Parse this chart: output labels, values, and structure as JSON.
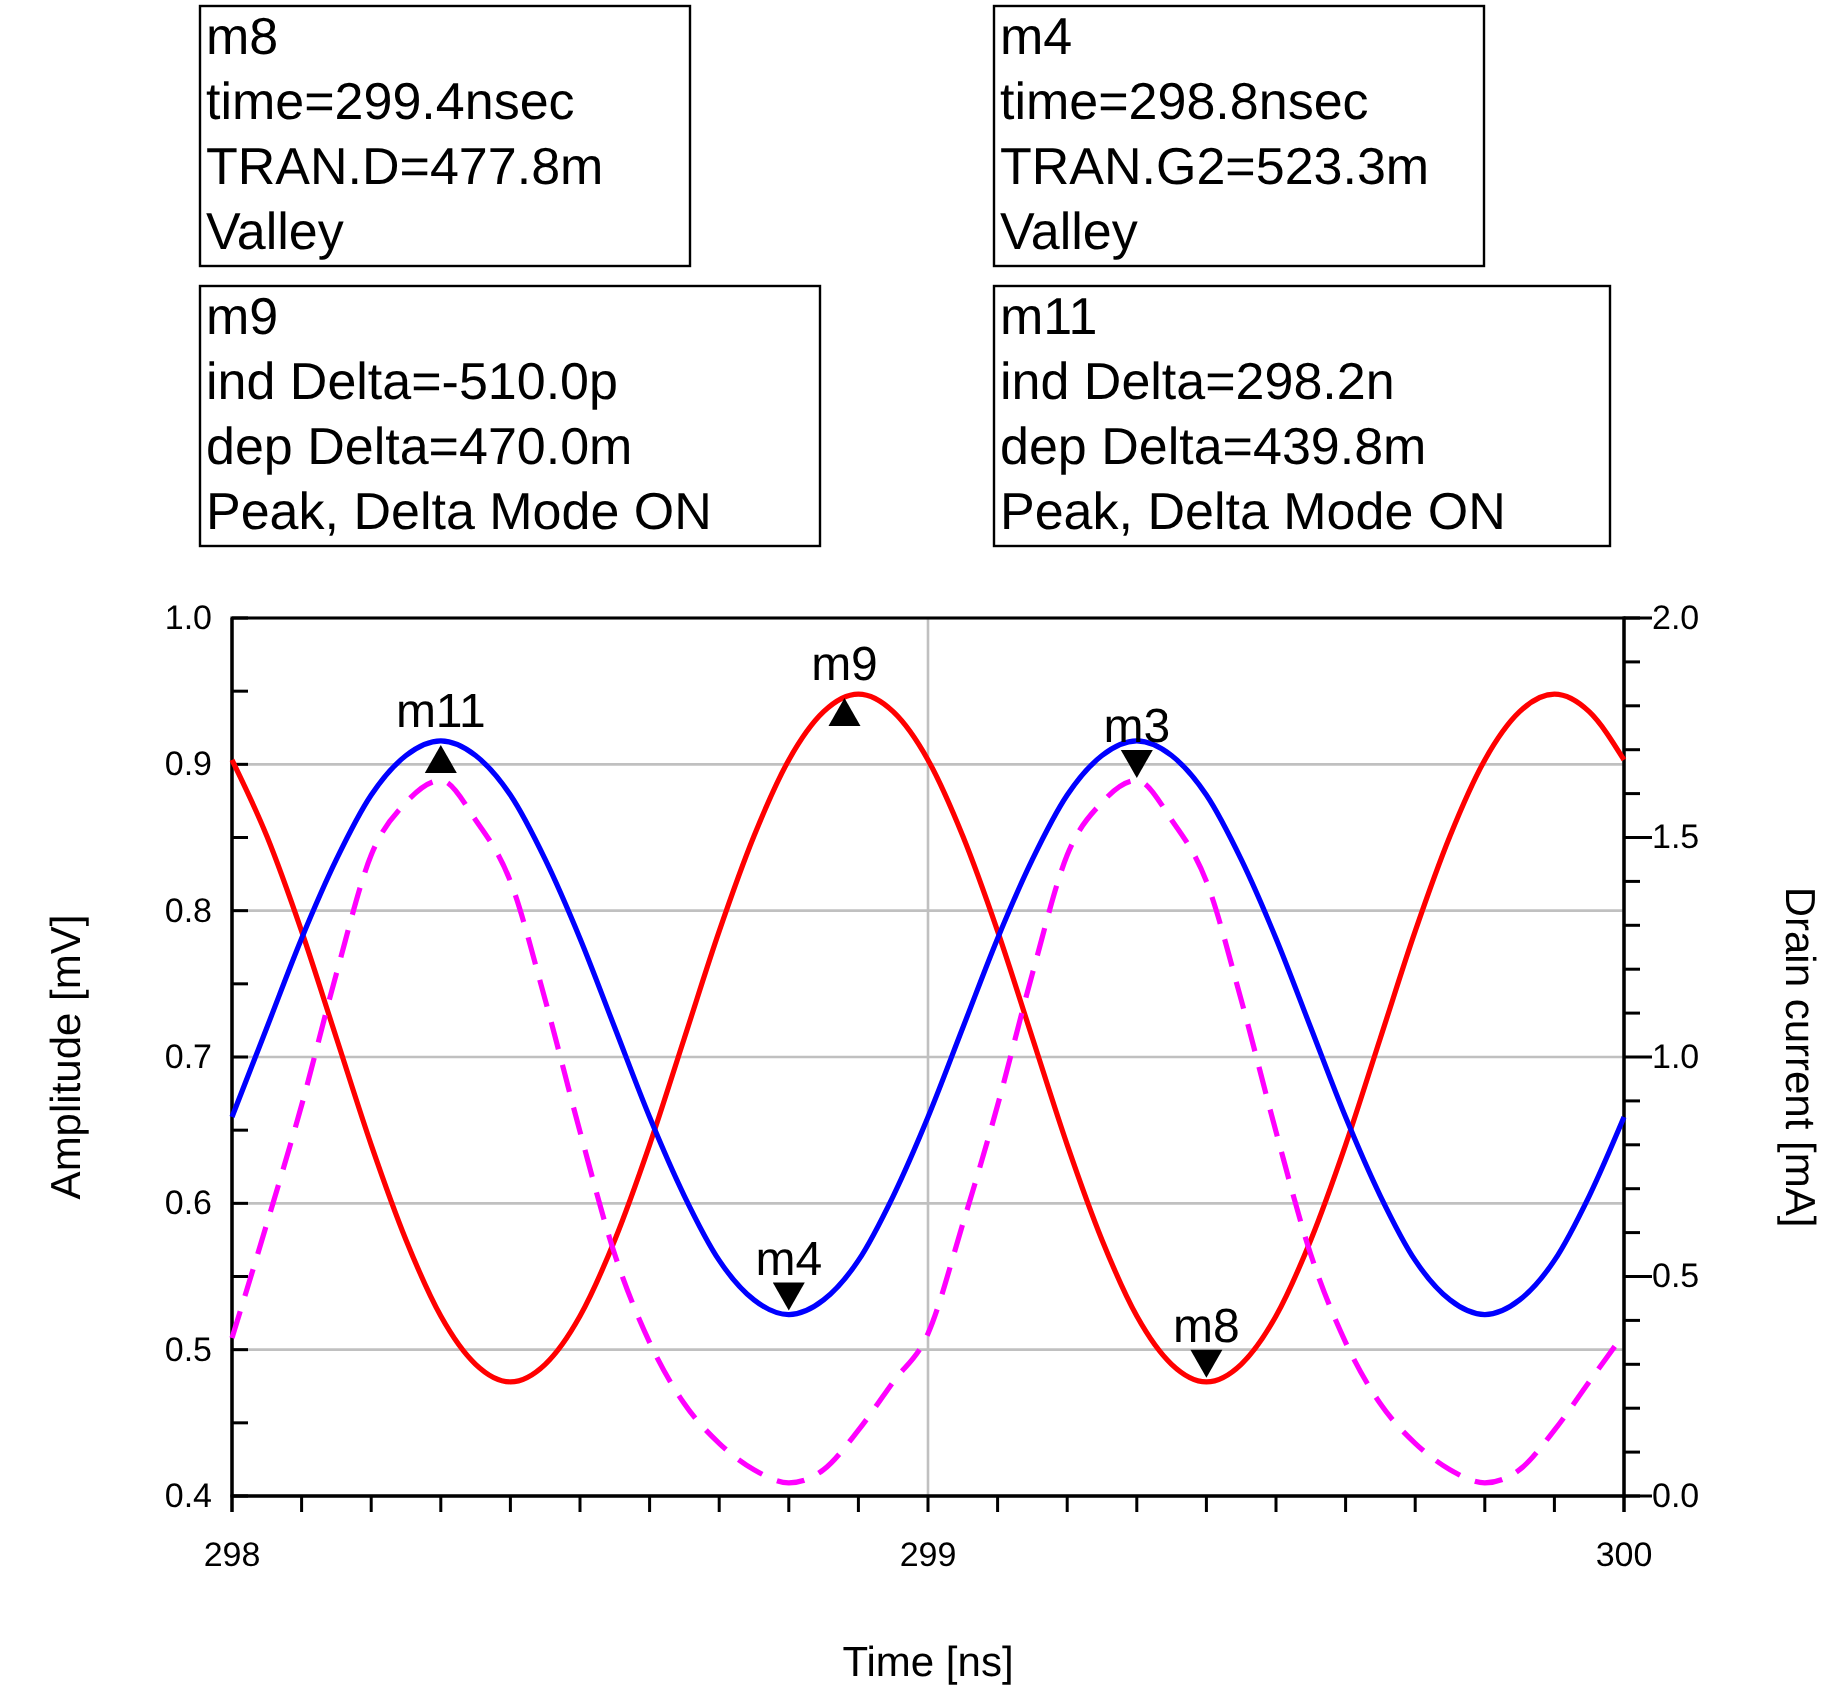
{
  "chart_data": {
    "type": "line",
    "xlabel": "Time [ns]",
    "ylabel": "Amplitude [mV]",
    "y2label": "Drain current [mA]",
    "x": [
      298,
      298.05,
      298.1,
      298.15,
      298.2,
      298.25,
      298.3,
      298.35,
      298.4,
      298.45,
      298.5,
      298.55,
      298.6,
      298.65,
      298.7,
      298.75,
      298.8,
      298.85,
      298.9,
      298.95,
      299,
      299.05,
      299.1,
      299.15,
      299.2,
      299.25,
      299.3,
      299.35,
      299.4,
      299.45,
      299.5,
      299.55,
      299.6,
      299.65,
      299.7,
      299.75,
      299.8,
      299.85,
      299.9,
      299.95,
      300
    ],
    "series": [
      {
        "color": "#ff0000",
        "values": [
          0.903,
          0.851,
          0.786,
          0.713,
          0.64,
          0.575,
          0.523,
          0.49,
          0.478,
          0.49,
          0.523,
          0.575,
          0.64,
          0.713,
          0.786,
          0.851,
          0.903,
          0.936,
          0.948,
          0.936,
          0.903,
          0.851,
          0.786,
          0.713,
          0.64,
          0.575,
          0.523,
          0.49,
          0.478,
          0.49,
          0.523,
          0.575,
          0.64,
          0.713,
          0.786,
          0.851,
          0.903,
          0.936,
          0.948,
          0.936,
          0.903
        ]
      },
      {
        "color": "#0000ff",
        "values": [
          0.659,
          0.72,
          0.781,
          0.835,
          0.879,
          0.906,
          0.916,
          0.906,
          0.879,
          0.835,
          0.781,
          0.72,
          0.659,
          0.605,
          0.561,
          0.534,
          0.524,
          0.534,
          0.561,
          0.605,
          0.659,
          0.72,
          0.781,
          0.835,
          0.879,
          0.906,
          0.916,
          0.906,
          0.879,
          0.835,
          0.781,
          0.72,
          0.659,
          0.605,
          0.561,
          0.534,
          0.524,
          0.534,
          0.561,
          0.605,
          0.659
        ]
      },
      {
        "color": "#ff00ff",
        "axis": "y2",
        "line_style": "dashed",
        "values": [
          0.36,
          0.62,
          0.89,
          1.19,
          1.46,
          1.58,
          1.63,
          1.54,
          1.4,
          1.13,
          0.83,
          0.55,
          0.35,
          0.21,
          0.12,
          0.06,
          0.03,
          0.06,
          0.15,
          0.26,
          0.37,
          0.62,
          0.89,
          1.19,
          1.46,
          1.58,
          1.63,
          1.54,
          1.4,
          1.13,
          0.83,
          0.55,
          0.35,
          0.21,
          0.12,
          0.06,
          0.03,
          0.06,
          0.15,
          0.26,
          0.37
        ]
      }
    ],
    "xlim": [
      298,
      300
    ],
    "xticks": [
      298,
      {
        "value": 298.1,
        "label": null
      },
      {
        "value": 298.2,
        "label": null
      },
      {
        "value": 298.3,
        "label": null
      },
      {
        "value": 298.4,
        "label": null
      },
      {
        "value": 298.5,
        "label": null
      },
      {
        "value": 298.6,
        "label": null
      },
      {
        "value": 298.7,
        "label": null
      },
      {
        "value": 298.8,
        "label": null
      },
      {
        "value": 298.9,
        "label": null
      },
      299,
      {
        "value": 299.1,
        "label": null
      },
      {
        "value": 299.2,
        "label": null
      },
      {
        "value": 299.3,
        "label": null
      },
      {
        "value": 299.4,
        "label": null
      },
      {
        "value": 299.5,
        "label": null
      },
      {
        "value": 299.6,
        "label": null
      },
      {
        "value": 299.7,
        "label": null
      },
      {
        "value": 299.8,
        "label": null
      },
      {
        "value": 299.9,
        "label": null
      },
      300
    ],
    "ylim": [
      0.4,
      1.0
    ],
    "yticks": [
      {
        "value": 0.4,
        "label": "0.4"
      },
      {
        "value": 0.45,
        "label": null
      },
      {
        "value": 0.5,
        "label": "0.5"
      },
      {
        "value": 0.55,
        "label": null
      },
      {
        "value": 0.6,
        "label": "0.6"
      },
      {
        "value": 0.65,
        "label": null
      },
      {
        "value": 0.7,
        "label": "0.7"
      },
      {
        "value": 0.75,
        "label": null
      },
      {
        "value": 0.8,
        "label": "0.8"
      },
      {
        "value": 0.85,
        "label": null
      },
      {
        "value": 0.9,
        "label": "0.9"
      },
      {
        "value": 0.95,
        "label": null
      },
      {
        "value": 1.0,
        "label": "1.0"
      }
    ],
    "y2lim": [
      0,
      2.0
    ],
    "y2ticks": [
      {
        "value": 0,
        "label": "0.0"
      },
      {
        "value": 0.1,
        "label": null
      },
      {
        "value": 0.2,
        "label": null
      },
      {
        "value": 0.3,
        "label": null
      },
      {
        "value": 0.4,
        "label": null
      },
      {
        "value": 0.5,
        "label": "0.5"
      },
      {
        "value": 0.6,
        "label": null
      },
      {
        "value": 0.7,
        "label": null
      },
      {
        "value": 0.8,
        "label": null
      },
      {
        "value": 0.9,
        "label": null
      },
      {
        "value": 1.0,
        "label": "1.0"
      },
      {
        "value": 1.1,
        "label": null
      },
      {
        "value": 1.2,
        "label": null
      },
      {
        "value": 1.3,
        "label": null
      },
      {
        "value": 1.4,
        "label": null
      },
      {
        "value": 1.5,
        "label": "1.5"
      },
      {
        "value": 1.6,
        "label": null
      },
      {
        "value": 1.7,
        "label": null
      },
      {
        "value": 1.8,
        "label": null
      },
      {
        "value": 1.9,
        "label": null
      },
      {
        "value": 2.0,
        "label": "2.0"
      }
    ],
    "grid": true,
    "line_style": "solid",
    "marker": "none",
    "annotations": [
      "m8\ntime=299.4nsec\nTRAN.D=477.8m\nValley",
      "m4\ntime=298.8nsec\nTRAN.G2=523.3m\nValley",
      "m9\nind Delta=-510.0p\ndep Delta=470.0m\nPeak, Delta Mode ON",
      "m11\nind Delta=298.2n\ndep Delta=439.8m\nPeak, Delta Mode ON",
      {
        "text": "m11",
        "x": 298.3,
        "y": 0.916
      },
      {
        "text": "m9",
        "x": 298.88,
        "y": 0.948
      },
      {
        "text": "m3",
        "x": 299.3,
        "y": 0.888
      },
      {
        "text": "m4",
        "x": 298.8,
        "y": 0.524
      },
      {
        "text": "m8",
        "x": 299.4,
        "y": 0.478
      }
    ]
  }
}
